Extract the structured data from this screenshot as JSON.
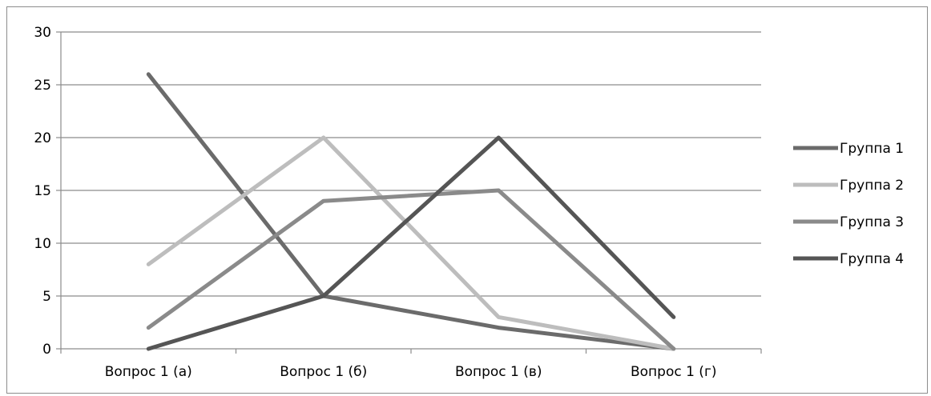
{
  "chart_data": {
    "type": "line",
    "categories": [
      "Вопрос 1 (а)",
      "Вопрос 1 (б)",
      "Вопрос 1 (в)",
      "Вопрос 1 (г)"
    ],
    "series": [
      {
        "name": "Группа 1",
        "values": [
          26,
          5,
          2,
          0
        ],
        "color": "#6b6b6b"
      },
      {
        "name": "Группа 2",
        "values": [
          8,
          20,
          3,
          0
        ],
        "color": "#bdbdbd"
      },
      {
        "name": "Группа 3",
        "values": [
          2,
          14,
          15,
          0
        ],
        "color": "#8a8a8a"
      },
      {
        "name": "Группа 4",
        "values": [
          0,
          5,
          20,
          3
        ],
        "color": "#555555"
      }
    ],
    "y_ticks": [
      "0",
      "5",
      "10",
      "15",
      "20",
      "25",
      "30"
    ],
    "ylim": [
      0,
      30
    ],
    "grid": true,
    "legend": "right",
    "title": "",
    "xlabel": "",
    "ylabel": ""
  }
}
